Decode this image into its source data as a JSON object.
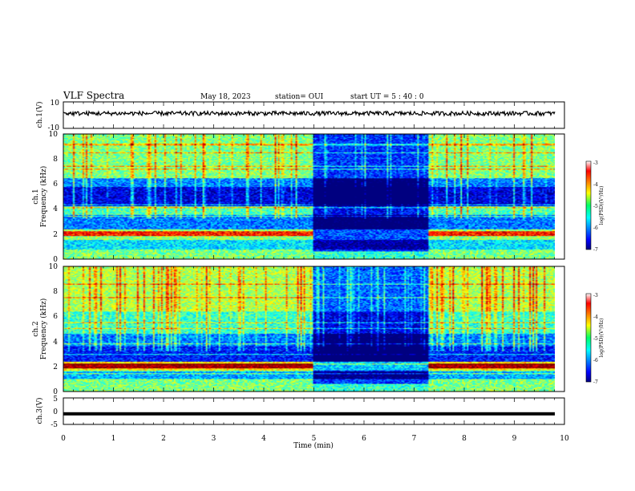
{
  "header": {
    "title": "VLF Spectra",
    "date": "May 18, 2023",
    "station": "station= OUI",
    "start": "start  UT =  5 : 40 : 0"
  },
  "panels": {
    "ch1v": {
      "ylabel": "ch.1(V)",
      "yticks": [
        "10",
        "-10"
      ]
    },
    "spec1": {
      "ylabel1": "ch.1",
      "ylabel2": "Frequency (kHz)",
      "yticks": [
        "10",
        "8",
        "6",
        "4",
        "2",
        "0"
      ]
    },
    "spec2": {
      "ylabel1": "ch.2",
      "ylabel2": "Frequency (kHz)",
      "yticks": [
        "10",
        "8",
        "6",
        "4",
        "2",
        "0"
      ]
    },
    "ch3v": {
      "ylabel": "ch.3(V)",
      "yticks": [
        "5",
        "0",
        "-5"
      ]
    }
  },
  "xaxis": {
    "label": "Time (min)",
    "ticks": [
      "0",
      "1",
      "2",
      "3",
      "4",
      "5",
      "6",
      "7",
      "8",
      "9",
      "10"
    ]
  },
  "colorbar": {
    "label": "log(PSD)(V²/Hz)",
    "ticks": [
      "-3",
      "-4",
      "-5",
      "-6",
      "-7"
    ]
  },
  "chart_data": {
    "type": "heatmap",
    "title": "VLF Spectra",
    "xlabel": "Time (min)",
    "ylabel": "Frequency (kHz)",
    "xlim": [
      0,
      10
    ],
    "ylim": [
      0,
      10
    ],
    "color_range": [
      -7,
      -3
    ],
    "colormap": "jet",
    "quiet_interval_min": [
      5.0,
      7.3
    ],
    "series": [
      {
        "name": "ch.1",
        "band_levels": [
          {
            "f": [
              0,
              0.7
            ],
            "level": -5.0
          },
          {
            "f": [
              0.7,
              1.5
            ],
            "level": -5.6
          },
          {
            "f": [
              1.5,
              2.4
            ],
            "level": -4.9
          },
          {
            "f": [
              2.4,
              3.5
            ],
            "level": -6.0
          },
          {
            "f": [
              3.5,
              4.2
            ],
            "level": -5.2
          },
          {
            "f": [
              4.2,
              5.8
            ],
            "level": -6.6
          },
          {
            "f": [
              5.8,
              6.5
            ],
            "level": -6.0
          },
          {
            "f": [
              6.5,
              10
            ],
            "level": -5.0
          }
        ],
        "strong_line_khz": 2.0
      },
      {
        "name": "ch.2",
        "band_levels": [
          {
            "f": [
              0,
              1.0
            ],
            "level": -5.0
          },
          {
            "f": [
              1.0,
              1.7
            ],
            "level": -5.8
          },
          {
            "f": [
              1.7,
              2.4
            ],
            "level": -4.4
          },
          {
            "f": [
              2.4,
              3.6
            ],
            "level": -6.4
          },
          {
            "f": [
              3.6,
              4.6
            ],
            "level": -6.0
          },
          {
            "f": [
              4.6,
              6.4
            ],
            "level": -5.3
          },
          {
            "f": [
              6.4,
              10
            ],
            "level": -4.8
          }
        ],
        "strong_line_khz": 2.0
      }
    ],
    "ch1_voltage": {
      "ylim": [
        -10,
        10
      ],
      "level": 0
    },
    "ch3_voltage": {
      "ylim": [
        -5,
        5
      ],
      "level": -1
    }
  }
}
